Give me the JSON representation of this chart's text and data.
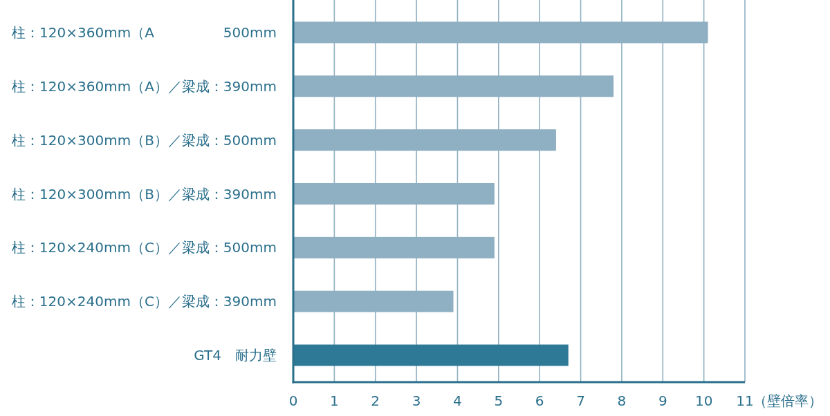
{
  "chart_data": {
    "type": "bar",
    "orientation": "horizontal",
    "xlabel": "（壁倍率）",
    "categories": [
      "柱：120×360mm（A　　　　　500mm",
      "柱：120×360mm（A）／梁成：390mm",
      "柱：120×300mm（B）／梁成：500mm",
      "柱：120×300mm（B）／梁成：390mm",
      "柱：120×240mm（C）／梁成：500mm",
      "柱：120×240mm（C）／梁成：390mm",
      "GT4　耐力壁"
    ],
    "values": [
      10.1,
      7.8,
      6.4,
      4.9,
      4.9,
      3.9,
      6.7
    ],
    "colors": [
      "#8fb0c2",
      "#8fb0c2",
      "#8fb0c2",
      "#8fb0c2",
      "#8fb0c2",
      "#8fb0c2",
      "#2e7a96"
    ],
    "xlim": [
      0,
      11
    ],
    "xticks": [
      0,
      1,
      2,
      3,
      4,
      5,
      6,
      7,
      8,
      9,
      10,
      11
    ],
    "grid": "x"
  }
}
